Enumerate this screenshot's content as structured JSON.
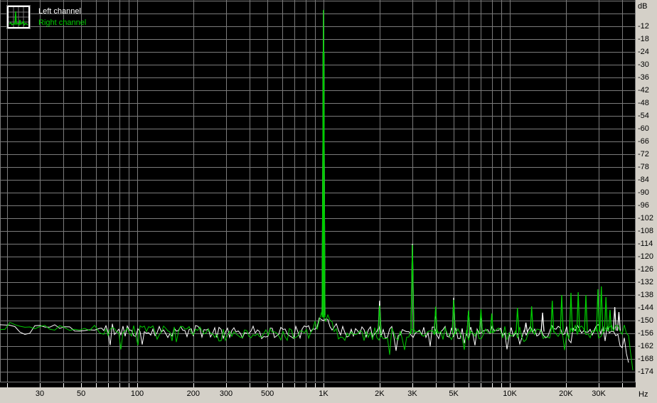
{
  "legend": {
    "items": [
      {
        "label": "Left channel",
        "color": "#ffffff"
      },
      {
        "label": "Right channel",
        "color": "#00cc00"
      }
    ]
  },
  "colors": {
    "plot_background": "#000000",
    "grid": "#7b7b7b",
    "axis_background": "#d4d0c8",
    "axis_text": "#000000",
    "tick_mark": "#ffffff",
    "left_channel": "#ffffff",
    "right_channel": "#00cc00"
  },
  "chart_data": {
    "type": "line",
    "title": "",
    "grid": true,
    "legend_position": "top-left",
    "x_axis": {
      "unit": "Hz",
      "scale": "log",
      "min_hz": 18.4,
      "max_hz": 47000,
      "ticks": [
        {
          "label": "30",
          "hz": 30
        },
        {
          "label": "50",
          "hz": 50
        },
        {
          "label": "100",
          "hz": 100
        },
        {
          "label": "200",
          "hz": 200
        },
        {
          "label": "300",
          "hz": 300
        },
        {
          "label": "500",
          "hz": 500
        },
        {
          "label": "1K",
          "hz": 1000
        },
        {
          "label": "2K",
          "hz": 2000
        },
        {
          "label": "3K",
          "hz": 3000
        },
        {
          "label": "5K",
          "hz": 5000
        },
        {
          "label": "10K",
          "hz": 10000
        },
        {
          "label": "20K",
          "hz": 20000
        },
        {
          "label": "30K",
          "hz": 30000
        }
      ]
    },
    "y_axis": {
      "unit": "dB",
      "min_db": -180,
      "max_db": 0,
      "grid_step_db": 6,
      "tick_labels": [
        "-12",
        "-18",
        "-24",
        "-30",
        "-36",
        "-42",
        "-48",
        "-54",
        "-60",
        "-66",
        "-72",
        "-78",
        "-84",
        "-90",
        "-96",
        "-102",
        "-108",
        "-114",
        "-120",
        "-126",
        "-132",
        "-138",
        "-144",
        "-150",
        "-156",
        "-162",
        "-168",
        "-174"
      ]
    },
    "series": [
      {
        "name": "Left channel",
        "color": "#ffffff",
        "seed": 11,
        "floor_profile": [
          [
            19,
            -152
          ],
          [
            22,
            -153
          ],
          [
            24,
            -158
          ],
          [
            28,
            -152.5
          ],
          [
            40,
            -153.5
          ],
          [
            80,
            -154.5
          ],
          [
            150,
            -155
          ],
          [
            400,
            -155.5
          ],
          [
            1500,
            -155.5
          ],
          [
            8000,
            -155.5
          ],
          [
            20000,
            -155
          ],
          [
            34000,
            -154.5
          ],
          [
            41000,
            -155
          ]
        ],
        "jitter_smooth_db": 1.8,
        "jitter_db": 3.0,
        "dip_probability": 0.06,
        "skirts": [
          {
            "hz": 1000,
            "gain_db": 8
          }
        ],
        "peaks": [
          [
            1000,
            -4.5
          ],
          [
            2000,
            -140.7
          ],
          [
            3000,
            -114
          ],
          [
            4000,
            -145
          ],
          [
            5000,
            -139.3
          ],
          [
            6000,
            -146
          ],
          [
            7000,
            -146.5
          ],
          [
            12200,
            -151
          ],
          [
            15000,
            -146.3
          ],
          [
            36600,
            -143.7
          ],
          [
            38500,
            -146
          ]
        ],
        "rolloff": {
          "start_hz": 40500,
          "end_hz": 43500,
          "end_db": -171
        },
        "clip_hz": 43500
      },
      {
        "name": "Right channel",
        "color": "#00cc00",
        "seed": 7,
        "floor_profile": [
          [
            19,
            -152.5
          ],
          [
            30,
            -153
          ],
          [
            60,
            -154
          ],
          [
            120,
            -155.5
          ],
          [
            300,
            -156.5
          ],
          [
            1500,
            -156.5
          ],
          [
            8000,
            -156
          ],
          [
            20000,
            -155.5
          ],
          [
            34000,
            -155
          ],
          [
            45000,
            -155
          ]
        ],
        "jitter_smooth_db": 1.8,
        "jitter_db": 3.2,
        "dip_probability": 0.09,
        "skirts": [
          {
            "hz": 1000,
            "gain_db": 8
          }
        ],
        "peaks": [
          [
            1000,
            -4.3
          ],
          [
            2000,
            -143
          ],
          [
            3000,
            -114.5
          ],
          [
            4000,
            -143.5
          ],
          [
            5000,
            -140.3
          ],
          [
            6000,
            -145.3
          ],
          [
            7000,
            -144.7
          ],
          [
            8000,
            -146.7
          ],
          [
            11000,
            -144
          ],
          [
            13100,
            -143.3
          ],
          [
            16900,
            -140.7
          ],
          [
            19000,
            -138
          ],
          [
            21300,
            -137
          ],
          [
            23300,
            -136.7
          ],
          [
            25600,
            -138
          ],
          [
            29700,
            -135.3
          ],
          [
            31000,
            -134
          ],
          [
            32800,
            -139
          ],
          [
            34500,
            -145
          ]
        ],
        "rolloff": {
          "start_hz": 43000,
          "end_hz": 46800,
          "end_db": -181
        },
        "clip_hz": 46900
      }
    ]
  }
}
